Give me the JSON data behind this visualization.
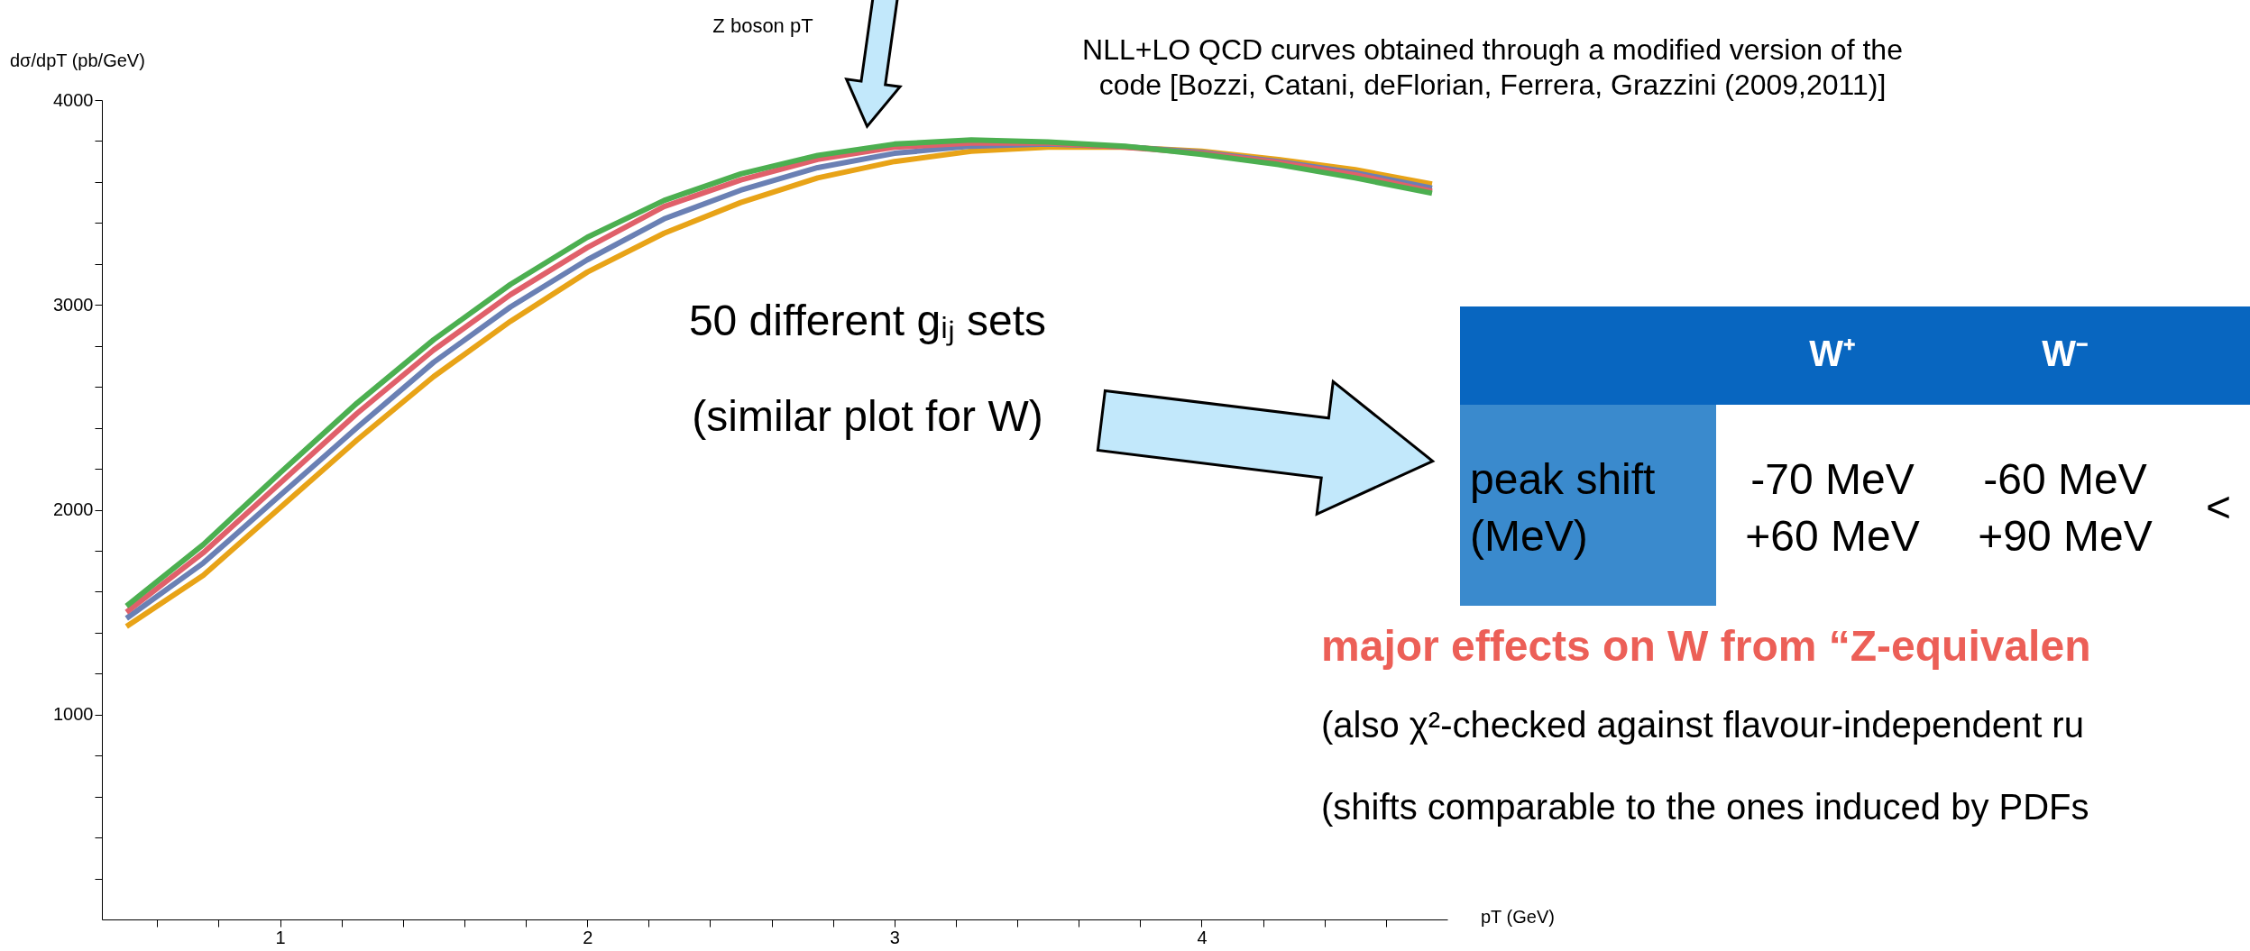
{
  "chart_data": {
    "type": "line",
    "xlabel": "pT (GeV)",
    "ylabel": "dσ/dpT (pb/GeV)",
    "x": [
      0.5,
      0.75,
      1.0,
      1.25,
      1.5,
      1.75,
      2.0,
      2.25,
      2.5,
      2.75,
      3.0,
      3.25,
      3.5,
      3.75,
      4.0,
      4.25,
      4.5,
      4.75
    ],
    "series": [
      {
        "color": "#e8a317",
        "values": [
          1430,
          1680,
          2010,
          2340,
          2650,
          2920,
          3160,
          3350,
          3500,
          3620,
          3700,
          3750,
          3770,
          3770,
          3750,
          3710,
          3660,
          3590
        ]
      },
      {
        "color": "#6a80b4",
        "values": [
          1470,
          1740,
          2070,
          2400,
          2720,
          2990,
          3220,
          3420,
          3560,
          3670,
          3740,
          3775,
          3785,
          3772,
          3745,
          3700,
          3645,
          3570
        ]
      },
      {
        "color": "#e0606a",
        "values": [
          1500,
          1790,
          2130,
          2470,
          2780,
          3050,
          3280,
          3480,
          3610,
          3710,
          3770,
          3790,
          3790,
          3770,
          3740,
          3695,
          3635,
          3555
        ]
      },
      {
        "color": "#4caf50",
        "values": [
          1530,
          1830,
          2180,
          2520,
          2830,
          3100,
          3330,
          3510,
          3640,
          3730,
          3785,
          3805,
          3795,
          3775,
          3735,
          3685,
          3620,
          3545
        ]
      }
    ],
    "xlim": [
      0.42,
      4.8
    ],
    "ylim": [
      0,
      4000
    ],
    "xticks": [
      {
        "value": 0.6,
        "label": null
      },
      {
        "value": 0.8,
        "label": null
      },
      1,
      {
        "value": 1.2,
        "label": null
      },
      {
        "value": 1.4,
        "label": null
      },
      {
        "value": 1.6,
        "label": null
      },
      {
        "value": 1.8,
        "label": null
      },
      2,
      {
        "value": 2.2,
        "label": null
      },
      {
        "value": 2.4,
        "label": null
      },
      {
        "value": 2.6,
        "label": null
      },
      {
        "value": 2.8,
        "label": null
      },
      3,
      {
        "value": 3.2,
        "label": null
      },
      {
        "value": 3.4,
        "label": null
      },
      {
        "value": 3.6,
        "label": null
      },
      {
        "value": 3.8,
        "label": null
      },
      4,
      {
        "value": 4.2,
        "label": null
      },
      {
        "value": 4.4,
        "label": null
      },
      {
        "value": 4.6,
        "label": null
      }
    ],
    "yticks": [
      {
        "value": 200,
        "label": null
      },
      {
        "value": 400,
        "label": null
      },
      {
        "value": 600,
        "label": null
      },
      {
        "value": 800,
        "label": null
      },
      1000,
      {
        "value": 1200,
        "label": null
      },
      {
        "value": 1400,
        "label": null
      },
      {
        "value": 1600,
        "label": null
      },
      {
        "value": 1800,
        "label": null
      },
      2000,
      {
        "value": 2200,
        "label": null
      },
      {
        "value": 2400,
        "label": null
      },
      {
        "value": 2600,
        "label": null
      },
      {
        "value": 2800,
        "label": null
      },
      3000,
      {
        "value": 3200,
        "label": null
      },
      {
        "value": 3400,
        "label": null
      },
      {
        "value": 3600,
        "label": null
      },
      {
        "value": 3800,
        "label": null
      },
      4000
    ],
    "grid": false,
    "legend": false,
    "marker": "none",
    "line_style": "solid",
    "annotations": [
      "Z boson pT",
      "NLL+LO QCD curves obtained through a modified version of the",
      "code [Bozzi, Catani, deFlorian, Ferrera, Grazzini (2009,2011)]",
      "50 different gᵢⱼ sets",
      "(similar plot for W)",
      "W⁺",
      "W⁻",
      "peak shift",
      "(MeV)",
      "-70 MeV",
      "+60 MeV",
      "-60 MeV",
      "+90 MeV",
      "<",
      "major effects on W from “Z-equivalen",
      "(also χ²-checked against flavour-independent ru",
      "(shifts comparable to the ones induced by PDFs"
    ]
  }
}
